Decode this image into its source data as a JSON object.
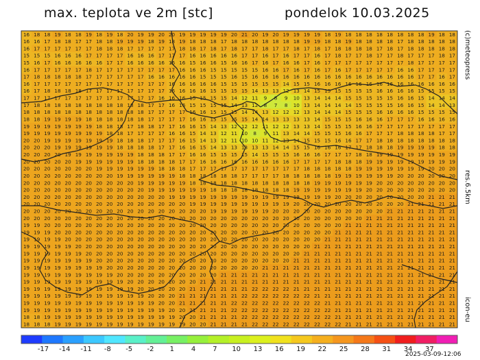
{
  "header": {
    "title": "max. teplota ve 2m [stc]",
    "date": "pondelok 10.03.2025"
  },
  "side_labels": {
    "copyright": "(c)meteopress",
    "resolution": "res.6.5km",
    "model": "icon-eu"
  },
  "runtime": "2025-03-09-12:06",
  "colorbar": {
    "ticks": [
      "-17",
      "-14",
      "-11",
      "-8",
      "-5",
      "-2",
      "1",
      "4",
      "7",
      "10",
      "13",
      "16",
      "19",
      "22",
      "25",
      "28",
      "31",
      "34",
      "37"
    ],
    "colors": [
      "#1e3cff",
      "#1e78ff",
      "#2aa0ff",
      "#3cc8ff",
      "#50e6ff",
      "#5af0c8",
      "#64f096",
      "#78f064",
      "#96f03c",
      "#b4f028",
      "#c8f020",
      "#dcf01e",
      "#f0e11e",
      "#f5c81e",
      "#f5af1e",
      "#f5961e",
      "#f57819",
      "#f55014",
      "#f01e1e",
      "#f01e64",
      "#f01eb4"
    ]
  },
  "map": {
    "background": "#e8a81e",
    "grid_rows": [
      "16 18 18 19 18 18 19 18 19 18 20 19 19 20 20 19 19 19 19 19 20 21 20 19 20 19 19 19 19 18 19 18 18 18 18 18 18 18 18 19 18 18",
      "16 16 17 18 18 17 17 18 18 19 19 19 18 19 18 19 18 18 18 17 18 18 18 18 18 18 18 19 19 18 18 19 18 18 18 18 17 18 18 18 18 18",
      "16 17 17 17 17 17 17 18 18 18 17 17 17 17 17 18 18 17 18 17 18 17 17 18 17 17 18 17 18 17 18 18 18 18 17 18 17 18 18 18 18 18",
      "15 15 15 16 16 16 17 17 17 17 16 16 16 17 17 17 16 16 16 16 16 17 17 16 17 16 17 17 16 17 18 17 17 18 17 17 18 17 17 17 18 17",
      "15 16 17 16 16 16 16 16 17 17 16 16 16 16 16 16 15 16 16 15 16 16 17 16 17 16 16 17 16 17 17 17 17 17 17 17 17 18 17 17 17 17",
      "16 17 17 17 17 17 18 17 17 17 17 17 17 17 17 16 16 16 15 15 15 15 15 16 16 17 16 17 16 17 16 17 17 17 17 17 16 16 17 17 17 17",
      "17 18 18 18 18 18 17 17 17 17 17 17 16 16 16 16 16 15 15 15 16 15 16 16 16 16 16 16 16 16 16 16 16 16 16 16 16 16 17 17 16 17",
      "16 17 17 17 17 17 17 17 17 17 17 17 17 17 16 16 16 16 16 15 15 15 15 15 15 14 15 15 16 16 16 16 16 16 16 16 16 16 16 16 16 16",
      "16 17 18 18 18 18 17 17 17 17 17 17 17 17 16 16 16 16 15 15 15 15 14 13 13 12 13 14 15 15 15 15 15 15 16 16 16 16 15 15 15 15",
      "17 17 17 17 17 17 17 17 17 17 17 17 17 16 16 16 15 15 15 15 14 12 11 9 8 9 10 13 14 14 14 15 15 15 15 15 16 16 15 14 14 14",
      "17 18 18 18 18 18 18 18 18 18 18 18 17 17 16 16 15 15 15 15 14 13 12 8 7 8 10 13 14 14 14 14 15 15 15 15 16 16 15 14 14 13",
      "18 18 18 18 18 18 18 18 18 18 18 18 17 17 17 17 16 16 15 15 15 14 14 13 12 12 12 13 14 14 14 15 15 15 16 16 16 16 15 15 15 15",
      "18 18 19 19 19 19 18 18 18 18 18 18 17 17 17 17 16 16 15 15 15 15 14 14 13 13 13 13 14 15 15 15 16 16 16 17 17 17 16 16 16 16",
      "19 19 19 19 19 19 19 18 18 18 17 18 18 17 17 16 16 15 14 13 12 12 12 11 12 12 13 13 14 15 15 15 16 16 17 17 17 17 17 17 17 17",
      "19 19 19 19 19 19 19 19 18 18 17 17 17 17 16 16 15 14 13 12 11 10 8 9 11 13 14 14 15 15 15 16 16 17 17 17 18 18 18 18 17 17",
      "20 20 19 19 19 19 19 19 19 18 18 18 17 17 17 16 15 14 13 12 11 10 10 11 12 13 14 15 15 15 16 16 17 17 18 18 18 18 18 18 18 18",
      "20 20 20 19 19 19 19 19 19 18 18 18 18 17 17 16 16 15 14 13 13 13 13 13 14 14 15 15 16 16 16 17 17 18 18 18 19 19 19 19 18 18",
      "20 20 20 20 19 19 19 19 19 19 19 18 18 18 17 17 16 16 15 15 15 15 14 15 15 15 16 16 16 17 17 17 18 18 19 19 19 19 19 19 19 19",
      "20 20 20 20 20 19 19 19 19 19 19 18 18 18 18 17 17 16 16 16 16 16 16 16 16 16 17 17 17 17 18 18 18 19 19 19 19 19 19 19 19 19",
      "20 20 20 20 20 20 20 19 19 19 19 19 19 18 18 18 17 17 17 17 17 17 17 17 17 17 17 18 18 18 18 18 19 19 19 19 19 19 19 20 20 20",
      "20 20 20 20 20 20 20 20 20 19 19 19 19 19 19 18 18 18 18 18 18 17 17 17 17 18 18 18 18 18 19 19 19 19 19 19 20 20 20 20 20 20",
      "20 20 20 20 20 20 20 20 20 20 20 19 19 19 19 19 18 18 18 18 18 18 18 18 18 18 18 18 19 19 19 19 19 19 20 20 20 20 20 20 20 20",
      "20 20 20 20 20 20 20 20 20 20 20 20 19 19 19 19 19 19 18 18 18 18 18 18 18 18 19 19 19 19 19 19 19 20 20 20 20 20 20 20 20 20",
      "20 20 20 20 20 20 20 20 20 20 20 20 20 20 19 19 19 19 19 19 19 19 19 19 19 19 19 19 19 19 20 20 20 20 20 20 20 20 20 21 21 21",
      "20 20 20 20 20 20 20 20 20 20 20 20 20 20 20 20 19 19 19 19 19 19 19 19 19 19 20 20 20 20 20 20 20 20 20 20 20 21 21 21 21 21",
      "20 20 20 20 20 20 20 20 20 20 20 20 20 20 20 20 20 20 19 19 19 19 19 19 20 20 20 20 20 20 20 20 20 20 20 21 21 21 21 21 21 21",
      "20 20 20 20 20 20 20 20 20 20 20 20 20 20 20 20 20 20 20 20 20 20 20 20 20 20 20 20 20 20 20 20 20 21 21 21 21 21 21 21 21 21",
      "19 19 20 20 20 20 20 20 20 20 20 20 20 20 20 20 20 20 20 20 20 20 20 20 20 20 20 20 20 20 20 21 21 21 21 21 21 21 21 21 21 21",
      "19 19 19 20 20 20 20 20 20 20 20 20 20 20 20 20 20 20 20 20 20 20 20 20 20 20 20 20 20 20 21 21 21 21 21 21 21 21 21 21 21 21",
      "19 19 19 19 20 20 20 20 20 20 20 20 20 20 20 20 20 20 20 20 20 20 20 20 20 20 20 20 20 21 21 21 21 21 21 21 21 21 21 21 21 21",
      "19 19 19 19 19 20 20 20 20 20 20 20 20 20 20 20 20 20 20 20 20 20 20 20 20 20 20 20 21 21 21 21 21 21 21 21 21 21 21 21 21 21",
      "19 19 19 19 19 19 20 20 20 20 20 20 20 20 20 20 20 20 20 20 20 20 20 20 20 20 20 21 21 21 21 21 21 21 21 21 21 21 21 21 21 21",
      "19 19 19 19 19 19 19 20 20 20 20 20 20 20 20 20 20 20 20 20 20 20 20 20 20 20 21 21 21 21 21 21 21 21 21 21 21 21 21 21 21 21",
      "19 19 19 19 19 19 19 19 20 20 20 20 20 20 20 20 20 20 20 20 20 20 20 21 21 21 21 21 21 21 21 21 21 21 21 21 21 21 21 21 21 21",
      "19 19 19 19 19 19 19 19 19 20 20 20 20 20 20 20 20 20 20 21 21 21 21 21 21 21 21 21 21 21 21 21 21 21 21 21 21 21 21 21 21 21",
      "19 19 19 19 19 19 19 19 19 19 20 20 20 20 20 20 20 21 21 21 21 21 21 21 21 21 21 21 21 21 21 21 21 21 21 21 21 21 21 21 21 21",
      "19 19 19 19 19 19 19 19 19 19 19 20 20 20 20 20 21 21 21 21 21 21 22 22 22 22 21 21 21 21 21 21 21 21 21 21 21 21 21 21 21 21",
      "19 19 19 19 19 19 19 19 19 19 19 19 20 20 20 21 21 21 21 21 21 22 22 22 22 22 22 22 21 21 21 21 21 21 21 21 21 21 21 21 21 21",
      "19 19 19 19 19 19 19 19 19 19 19 19 19 20 20 21 21 21 21 21 22 22 22 22 22 22 22 22 22 21 21 21 21 21 21 21 21 21 21 21 21 21",
      "19 19 19 19 19 19 19 19 19 19 19 19 19 19 20 20 21 21 21 21 22 22 22 22 22 22 22 22 22 22 21 21 21 21 21 21 21 21 21 21 21 21",
      "18 18 19 19 19 19 19 19 19 19 19 19 19 19 19 20 20 21 21 21 21 22 22 22 22 22 22 22 22 22 21 21 21 21 21 21 21 21 21 21 21 21",
      "18 18 18 19 19 19 19 19 19 19 19 19 19 19 19 19 20 20 21 21 21 21 22 22 22 22 22 22 22 22 22 21 21 21 21 21 21 21 21 21 21 21"
    ]
  }
}
